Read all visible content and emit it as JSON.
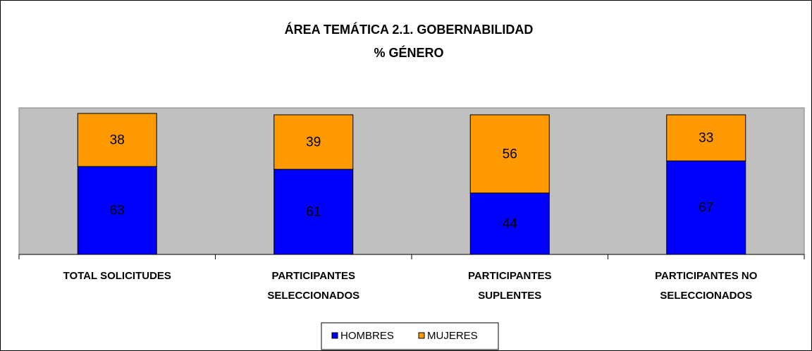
{
  "chart_data": {
    "type": "stacked_bar",
    "title": "ÁREA TEMÁTICA 2.1. GOBERNABILIDAD",
    "subtitle": "% GÉNERO",
    "categories": [
      "TOTAL SOLICITUDES",
      "PARTICIPANTES\nSELECCIONADOS",
      "PARTICIPANTES\nSUPLENTES",
      "PARTICIPANTES NO\nSELECCIONADOS"
    ],
    "series": [
      {
        "name": "HOMBRES",
        "color": "#0000ff",
        "values": [
          63,
          61,
          44,
          67
        ]
      },
      {
        "name": "MUJERES",
        "color": "#ff9900",
        "values": [
          38,
          39,
          56,
          33
        ]
      }
    ],
    "ylim": [
      0,
      105
    ],
    "legend": "bottom"
  }
}
